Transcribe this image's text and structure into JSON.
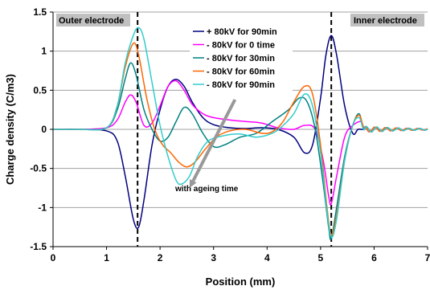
{
  "chart_data": {
    "type": "line",
    "xlabel": "Position (mm)",
    "ylabel": "Charge density (C/m3)",
    "xlim": [
      0,
      7
    ],
    "ylim": [
      -1.5,
      1.5
    ],
    "x_ticks": [
      "0",
      "1",
      "2",
      "3",
      "4",
      "5",
      "6",
      "7"
    ],
    "y_ticks": [
      "-1.5",
      "-1",
      "-0.5",
      "0",
      "0.5",
      "1",
      "1.5"
    ],
    "grid": "horizontal",
    "legend_position": "top-center",
    "region_labels": [
      {
        "text": "Outer electrode",
        "position": "top-left"
      },
      {
        "text": "Inner electrode",
        "position": "top-right"
      }
    ],
    "electrode_lines_x": [
      1.58,
      5.2
    ],
    "annotation": {
      "text": "with ageing time",
      "arrow_from": [
        3.4,
        0.38
      ],
      "arrow_to": [
        2.55,
        -0.75
      ]
    },
    "series": [
      {
        "name": "+ 80kV for 90min",
        "color": "#00007f",
        "points": [
          [
            0,
            0
          ],
          [
            0.5,
            0
          ],
          [
            1.0,
            -0.02
          ],
          [
            1.2,
            -0.15
          ],
          [
            1.35,
            -0.6
          ],
          [
            1.5,
            -1.15
          ],
          [
            1.6,
            -1.25
          ],
          [
            1.7,
            -0.9
          ],
          [
            1.85,
            -0.2
          ],
          [
            2.0,
            0.25
          ],
          [
            2.15,
            0.55
          ],
          [
            2.3,
            0.64
          ],
          [
            2.45,
            0.55
          ],
          [
            2.6,
            0.35
          ],
          [
            2.8,
            0.15
          ],
          [
            3.0,
            0.06
          ],
          [
            3.3,
            0.02
          ],
          [
            3.6,
            0.01
          ],
          [
            3.9,
            0.02
          ],
          [
            4.2,
            0.0
          ],
          [
            4.5,
            -0.1
          ],
          [
            4.7,
            -0.3
          ],
          [
            4.85,
            -0.2
          ],
          [
            5.0,
            0.4
          ],
          [
            5.1,
            0.95
          ],
          [
            5.2,
            1.2
          ],
          [
            5.3,
            0.95
          ],
          [
            5.45,
            0.3
          ],
          [
            5.6,
            -0.05
          ],
          [
            5.7,
            0.0
          ],
          [
            5.8,
            0.02
          ],
          [
            6.0,
            0.0
          ],
          [
            6.5,
            0.0
          ],
          [
            7.0,
            0.0
          ]
        ]
      },
      {
        "name": "- 80kV for 0 time",
        "color": "#ff00ff",
        "points": [
          [
            0,
            0
          ],
          [
            0.5,
            0
          ],
          [
            1.0,
            0.02
          ],
          [
            1.2,
            0.12
          ],
          [
            1.35,
            0.35
          ],
          [
            1.45,
            0.44
          ],
          [
            1.55,
            0.35
          ],
          [
            1.7,
            0.05
          ],
          [
            1.85,
            0.08
          ],
          [
            2.0,
            0.3
          ],
          [
            2.15,
            0.55
          ],
          [
            2.3,
            0.62
          ],
          [
            2.45,
            0.5
          ],
          [
            2.6,
            0.32
          ],
          [
            2.8,
            0.2
          ],
          [
            3.0,
            0.15
          ],
          [
            3.3,
            0.12
          ],
          [
            3.6,
            0.1
          ],
          [
            3.9,
            0.08
          ],
          [
            4.2,
            0.02
          ],
          [
            4.5,
            0.0
          ],
          [
            4.7,
            0.05
          ],
          [
            4.9,
            0.0
          ],
          [
            5.05,
            -0.4
          ],
          [
            5.15,
            -0.85
          ],
          [
            5.2,
            -0.95
          ],
          [
            5.3,
            -0.6
          ],
          [
            5.45,
            -0.1
          ],
          [
            5.6,
            0.05
          ],
          [
            5.75,
            0.1
          ],
          [
            5.9,
            0.02
          ],
          [
            6.0,
            0.0
          ],
          [
            6.5,
            0.0
          ],
          [
            7.0,
            0.0
          ]
        ]
      },
      {
        "name": "- 80kV for 30min",
        "color": "#008080",
        "points": [
          [
            0,
            0
          ],
          [
            0.5,
            0
          ],
          [
            1.0,
            0.02
          ],
          [
            1.2,
            0.25
          ],
          [
            1.35,
            0.65
          ],
          [
            1.45,
            0.85
          ],
          [
            1.55,
            0.7
          ],
          [
            1.7,
            0.25
          ],
          [
            1.85,
            0.0
          ],
          [
            2.0,
            -0.15
          ],
          [
            2.15,
            -0.1
          ],
          [
            2.3,
            0.1
          ],
          [
            2.45,
            0.28
          ],
          [
            2.6,
            0.2
          ],
          [
            2.8,
            -0.05
          ],
          [
            3.0,
            -0.22
          ],
          [
            3.2,
            -0.2
          ],
          [
            3.5,
            -0.1
          ],
          [
            3.8,
            -0.05
          ],
          [
            4.1,
            0.1
          ],
          [
            4.4,
            0.25
          ],
          [
            4.6,
            0.4
          ],
          [
            4.75,
            0.35
          ],
          [
            4.9,
            0.0
          ],
          [
            5.05,
            -0.7
          ],
          [
            5.15,
            -1.25
          ],
          [
            5.2,
            -1.4
          ],
          [
            5.3,
            -1.0
          ],
          [
            5.45,
            -0.35
          ],
          [
            5.6,
            0.05
          ],
          [
            5.72,
            0.2
          ],
          [
            5.85,
            0.05
          ],
          [
            6.0,
            0.0
          ],
          [
            6.5,
            0.0
          ],
          [
            7.0,
            0.0
          ]
        ]
      },
      {
        "name": "- 80kV for 60min",
        "color": "#ff6600",
        "points": [
          [
            0,
            0
          ],
          [
            0.5,
            0
          ],
          [
            1.0,
            0.02
          ],
          [
            1.2,
            0.3
          ],
          [
            1.35,
            0.8
          ],
          [
            1.5,
            1.1
          ],
          [
            1.6,
            0.95
          ],
          [
            1.75,
            0.4
          ],
          [
            1.9,
            0.0
          ],
          [
            2.05,
            -0.2
          ],
          [
            2.2,
            -0.3
          ],
          [
            2.35,
            -0.42
          ],
          [
            2.5,
            -0.48
          ],
          [
            2.65,
            -0.42
          ],
          [
            2.85,
            -0.25
          ],
          [
            3.05,
            -0.1
          ],
          [
            3.3,
            -0.02
          ],
          [
            3.6,
            0.0
          ],
          [
            3.9,
            -0.05
          ],
          [
            4.1,
            -0.03
          ],
          [
            4.3,
            0.1
          ],
          [
            4.5,
            0.35
          ],
          [
            4.7,
            0.55
          ],
          [
            4.85,
            0.45
          ],
          [
            5.0,
            -0.2
          ],
          [
            5.12,
            -1.0
          ],
          [
            5.2,
            -1.35
          ],
          [
            5.3,
            -1.1
          ],
          [
            5.45,
            -0.4
          ],
          [
            5.6,
            0.05
          ],
          [
            5.72,
            0.18
          ],
          [
            5.85,
            0.05
          ],
          [
            6.0,
            0.0
          ],
          [
            6.5,
            0.0
          ],
          [
            7.0,
            0.0
          ]
        ]
      },
      {
        "name": "- 80kV for 90min",
        "color": "#33cccc",
        "points": [
          [
            0,
            0
          ],
          [
            0.5,
            0
          ],
          [
            1.0,
            0.02
          ],
          [
            1.2,
            0.3
          ],
          [
            1.35,
            0.85
          ],
          [
            1.5,
            1.2
          ],
          [
            1.6,
            1.3
          ],
          [
            1.7,
            1.15
          ],
          [
            1.85,
            0.6
          ],
          [
            2.0,
            0.05
          ],
          [
            2.15,
            -0.35
          ],
          [
            2.3,
            -0.65
          ],
          [
            2.4,
            -0.7
          ],
          [
            2.55,
            -0.6
          ],
          [
            2.7,
            -0.35
          ],
          [
            2.9,
            -0.15
          ],
          [
            3.2,
            -0.08
          ],
          [
            3.5,
            -0.06
          ],
          [
            3.8,
            -0.1
          ],
          [
            4.1,
            -0.05
          ],
          [
            4.3,
            0.05
          ],
          [
            4.5,
            0.2
          ],
          [
            4.7,
            0.45
          ],
          [
            4.85,
            0.3
          ],
          [
            5.0,
            -0.3
          ],
          [
            5.12,
            -1.05
          ],
          [
            5.2,
            -1.38
          ],
          [
            5.3,
            -1.15
          ],
          [
            5.45,
            -0.4
          ],
          [
            5.6,
            0.05
          ],
          [
            5.72,
            0.15
          ],
          [
            5.85,
            0.05
          ],
          [
            6.0,
            0.0
          ],
          [
            6.5,
            0.0
          ],
          [
            7.0,
            0.0
          ]
        ]
      }
    ],
    "ringing_tail": {
      "x_start": 5.8,
      "x_end": 7.0,
      "period": 0.2,
      "amplitude": 0.04
    }
  }
}
